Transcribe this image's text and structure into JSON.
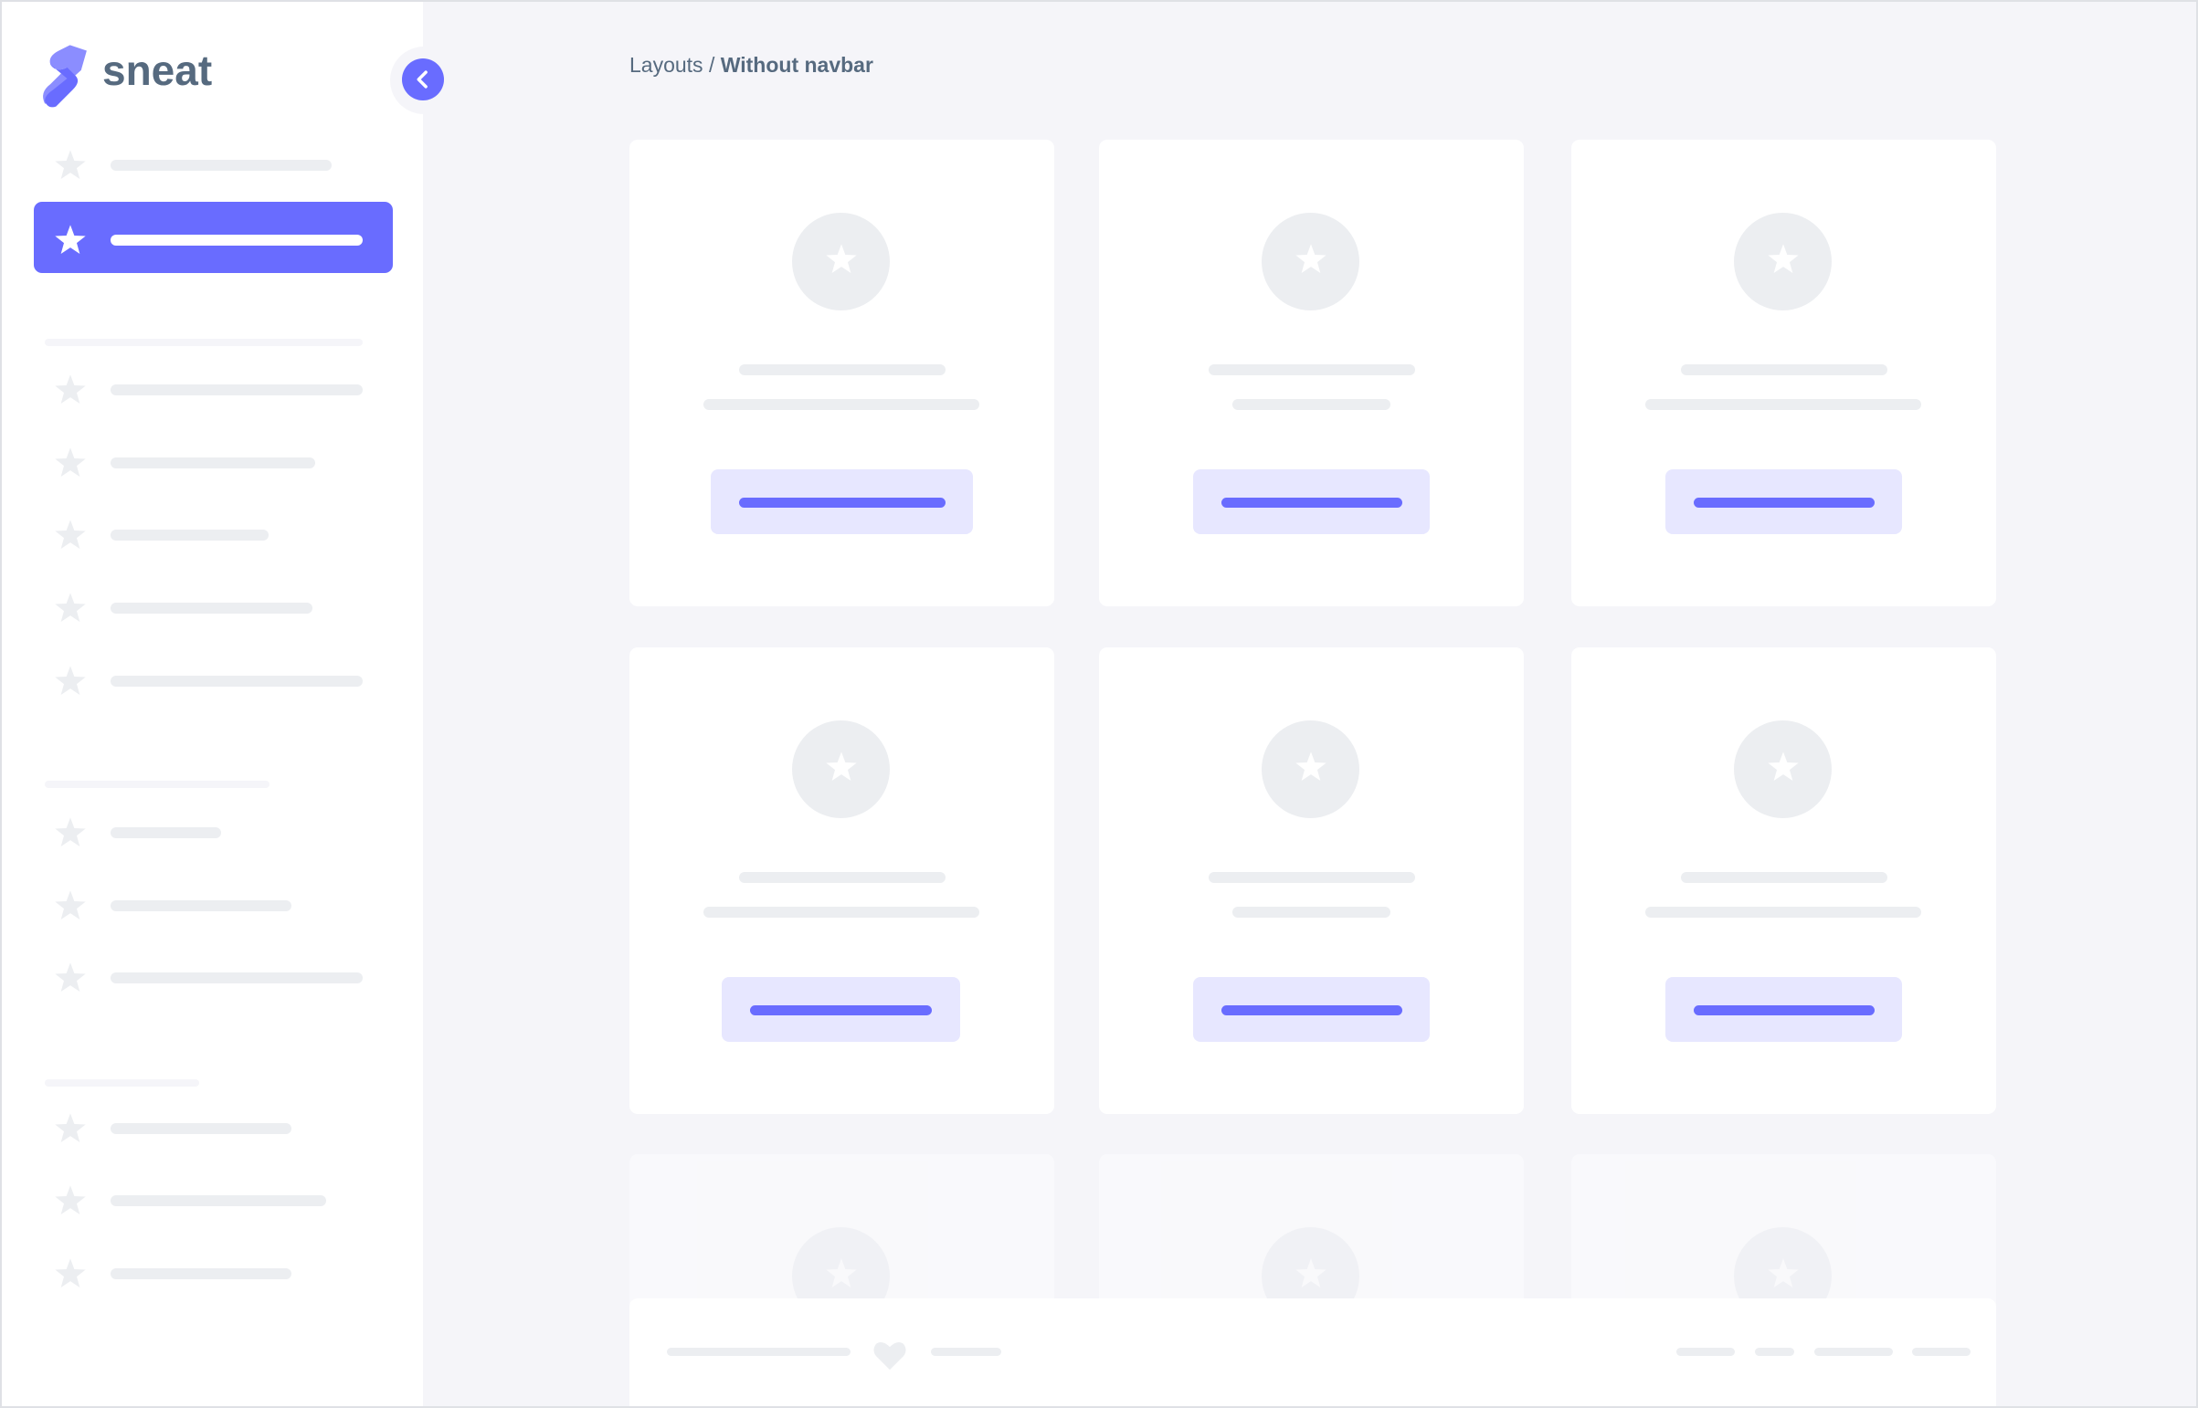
{
  "brand": {
    "name": "sneat",
    "logo_color": "#696cff",
    "text_color": "#566a7f"
  },
  "breadcrumb": {
    "parent": "Layouts",
    "separator": "/",
    "current": "Without navbar"
  },
  "colors": {
    "accent": "#696cff",
    "accent_light": "#e7e7ff",
    "placeholder": "#eceef1",
    "background": "#f5f5f9"
  },
  "icons": {
    "menu_item": "star-icon",
    "toggle": "chevron-left-icon",
    "footer": "heart-icon"
  },
  "sidebar": {
    "active_index": 1
  }
}
